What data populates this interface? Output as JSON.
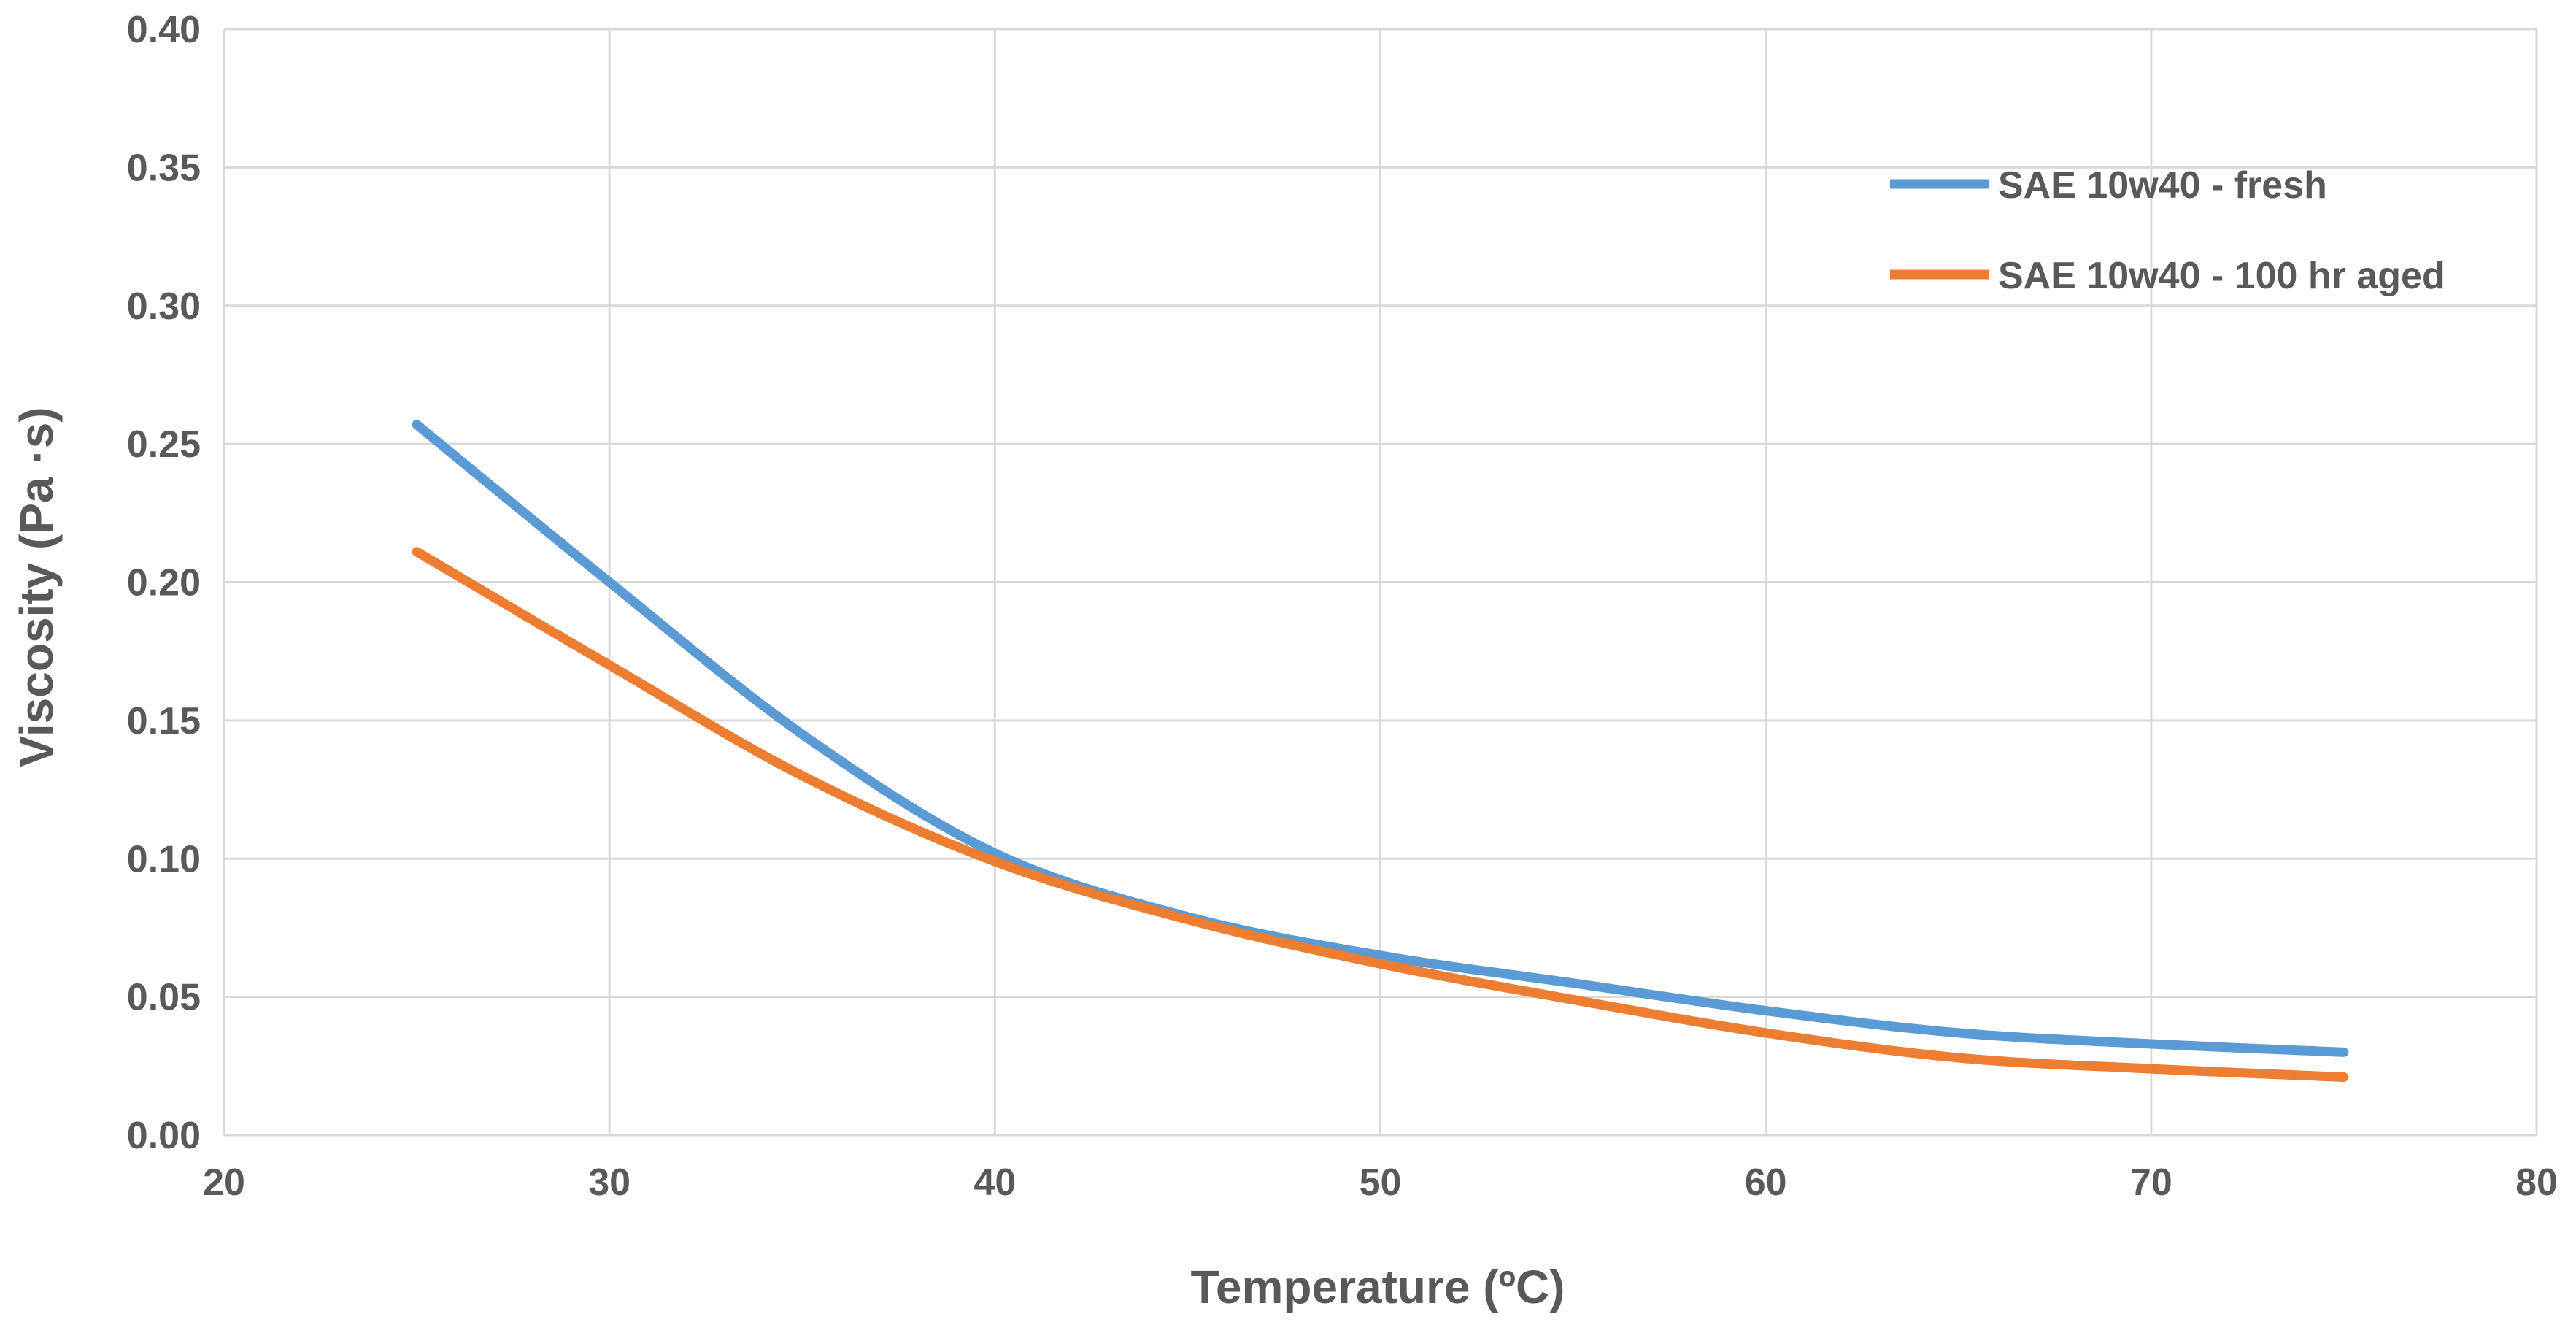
{
  "chart_data": {
    "type": "line",
    "title": "",
    "xlabel": "Temperature (ºC)",
    "ylabel": "Viscosity (Pa ·s)",
    "xlim": [
      20,
      80
    ],
    "ylim": [
      0,
      0.4
    ],
    "xticks": [
      20,
      30,
      40,
      50,
      60,
      70,
      80
    ],
    "xtick_labels": [
      "20",
      "30",
      "40",
      "50",
      "60",
      "70",
      "80"
    ],
    "yticks": [
      0,
      0.05,
      0.1,
      0.15,
      0.2,
      0.25,
      0.3,
      0.35,
      0.4
    ],
    "ytick_labels": [
      "0.00",
      "0.05",
      "0.10",
      "0.15",
      "0.20",
      "0.25",
      "0.30",
      "0.35",
      "0.40"
    ],
    "grid": true,
    "legend_position": "top-right",
    "x": [
      25,
      30,
      35,
      40,
      45,
      50,
      55,
      60,
      65,
      70,
      75
    ],
    "series": [
      {
        "name": "SAE 10w40 - fresh",
        "color": "#5B9BD5",
        "values": [
          0.257,
          0.2,
          0.145,
          0.102,
          0.079,
          0.065,
          0.055,
          0.045,
          0.037,
          0.033,
          0.03
        ]
      },
      {
        "name": "SAE 10w40 - 100 hr aged",
        "color": "#ED7D31",
        "values": [
          0.211,
          0.17,
          0.13,
          0.099,
          0.078,
          0.062,
          0.049,
          0.037,
          0.028,
          0.024,
          0.021
        ]
      }
    ]
  }
}
